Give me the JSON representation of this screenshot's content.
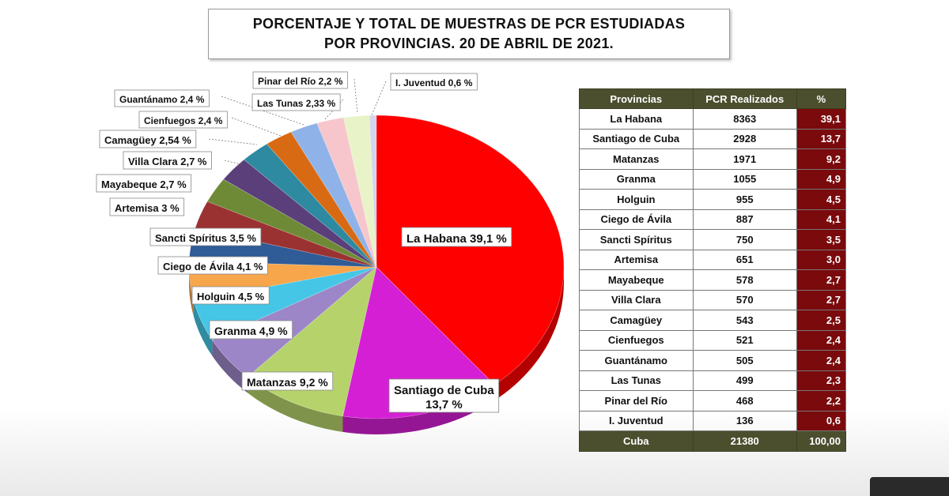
{
  "header": {
    "line1": "PORCENTAJE Y TOTAL DE MUESTRAS DE PCR ESTUDIADAS",
    "line2": "POR PROVINCIAS. 20 DE ABRIL DE 2021."
  },
  "chart_data": {
    "type": "pie",
    "title": "PORCENTAJE Y TOTAL DE MUESTRAS DE PCR ESTUDIADAS POR PROVINCIAS. 20 DE ABRIL DE 2021.",
    "slices": [
      {
        "name": "La Habana",
        "value": 39.1,
        "label": "La Habana 39,1 %",
        "color": "#ff0000"
      },
      {
        "name": "Santiago de Cuba",
        "value": 13.7,
        "label": "Santiago de Cuba 13,7 %",
        "color": "#d51fd5"
      },
      {
        "name": "Matanzas",
        "value": 9.2,
        "label": "Matanzas 9,2 %",
        "color": "#b5d36a"
      },
      {
        "name": "Granma",
        "value": 4.9,
        "label": "Granma 4,9 %",
        "color": "#9c86c7"
      },
      {
        "name": "Holguín",
        "value": 4.5,
        "label": "Holguin 4,5 %",
        "color": "#46c6e6"
      },
      {
        "name": "Ciego de Ávila",
        "value": 4.1,
        "label": "Ciego de Ávila 4,1 %",
        "color": "#f7a64b"
      },
      {
        "name": "Sancti Spíritus",
        "value": 3.5,
        "label": "Sancti Spíritus 3,5 %",
        "color": "#2f5b96"
      },
      {
        "name": "Artemisa",
        "value": 3.0,
        "label": "Artemisa 3 %",
        "color": "#9b3232"
      },
      {
        "name": "Mayabeque",
        "value": 2.7,
        "label": "Mayabeque 2,7 %",
        "color": "#6f8a36"
      },
      {
        "name": "Villa Clara",
        "value": 2.7,
        "label": "Villa Clara 2,7 %",
        "color": "#5a3f7a"
      },
      {
        "name": "Camagüey",
        "value": 2.54,
        "label": "Camagüey 2,54 %",
        "color": "#2d8aa0"
      },
      {
        "name": "Cienfuegos",
        "value": 2.4,
        "label": "Cienfuegos 2,4 %",
        "color": "#d86a14"
      },
      {
        "name": "Guantánamo",
        "value": 2.4,
        "label": "Guantánamo 2,4 %",
        "color": "#8fb3e8"
      },
      {
        "name": "Las Tunas",
        "value": 2.33,
        "label": "Las Tunas 2,33 %",
        "color": "#f7c6cc"
      },
      {
        "name": "Pinar del Río",
        "value": 2.2,
        "label": "Pinar del Río 2,2 %",
        "color": "#e8f4c8"
      },
      {
        "name": "I. Juventud",
        "value": 0.6,
        "label": "I.  Juventud 0,6 %",
        "color": "#d4d4ee"
      }
    ]
  },
  "table": {
    "headers": [
      "Provincias",
      "PCR Realizados",
      "%"
    ],
    "rows": [
      [
        "La Habana",
        "8363",
        "39,1"
      ],
      [
        "Santiago de Cuba",
        "2928",
        "13,7"
      ],
      [
        "Matanzas",
        "1971",
        "9,2"
      ],
      [
        "Granma",
        "1055",
        "4,9"
      ],
      [
        "Holguin",
        "955",
        "4,5"
      ],
      [
        "Ciego de Ávila",
        "887",
        "4,1"
      ],
      [
        "Sancti Spíritus",
        "750",
        "3,5"
      ],
      [
        "Artemisa",
        "651",
        "3,0"
      ],
      [
        "Mayabeque",
        "578",
        "2,7"
      ],
      [
        "Villa Clara",
        "570",
        "2,7"
      ],
      [
        "Camagüey",
        "543",
        "2,5"
      ],
      [
        "Cienfuegos",
        "521",
        "2,4"
      ],
      [
        "Guantánamo",
        "505",
        "2,4"
      ],
      [
        "Las Tunas",
        "499",
        "2,3"
      ],
      [
        "Pinar del Río",
        "468",
        "2,2"
      ],
      [
        "I.  Juventud",
        "136",
        "0,6"
      ]
    ],
    "total": [
      "Cuba",
      "21380",
      "100,00"
    ]
  }
}
